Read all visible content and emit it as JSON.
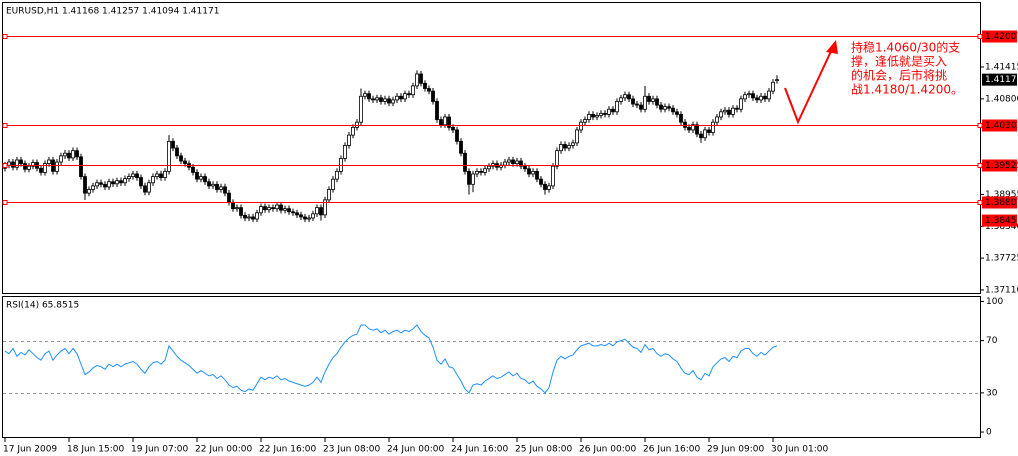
{
  "chart_data": [
    {
      "type": "candlestick",
      "title": "EURUSD,H1  1.41168 1.41257 1.41094 1.41171",
      "categories": [
        "17 Jun 2009",
        null,
        null,
        null,
        null,
        null,
        null,
        null,
        null,
        null,
        null,
        null,
        null,
        null,
        null,
        null,
        "18 Jun 15:00",
        null,
        null,
        null,
        null,
        null,
        null,
        null,
        null,
        null,
        null,
        null,
        null,
        null,
        null,
        null,
        "19 Jun 07:00",
        null,
        null,
        null,
        null,
        null,
        null,
        null,
        null,
        null,
        null,
        null,
        null,
        null,
        null,
        null,
        "22 Jun 00:00",
        null,
        null,
        null,
        null,
        null,
        null,
        null,
        null,
        null,
        null,
        null,
        null,
        null,
        null,
        null,
        "22 Jun 16:00",
        null,
        null,
        null,
        null,
        null,
        null,
        null,
        null,
        null,
        null,
        null,
        null,
        null,
        null,
        null,
        "23 Jun 08:00",
        null,
        null,
        null,
        null,
        null,
        null,
        null,
        null,
        null,
        null,
        null,
        null,
        null,
        null,
        null,
        "24 Jun 00:00",
        null,
        null,
        null,
        null,
        null,
        null,
        null,
        null,
        null,
        null,
        null,
        null,
        null,
        null,
        null,
        "24 Jun 16:00",
        null,
        null,
        null,
        null,
        null,
        null,
        null,
        null,
        null,
        null,
        null,
        null,
        null,
        null,
        null,
        "25 Jun 08:00",
        null,
        null,
        null,
        null,
        null,
        null,
        null,
        null,
        null,
        null,
        null,
        null,
        null,
        null,
        null,
        "26 Jun 00:00",
        null,
        null,
        null,
        null,
        null,
        null,
        null,
        null,
        null,
        null,
        null,
        null,
        null,
        null,
        null,
        "26 Jun 16:00",
        null,
        null,
        null,
        null,
        null,
        null,
        null,
        null,
        null,
        null,
        null,
        null,
        null,
        null,
        null,
        "29 Jun 09:00",
        null,
        null,
        null,
        null,
        null,
        null,
        null,
        null,
        null,
        null,
        null,
        null,
        null,
        null,
        null,
        "30 Jun 01:00",
        null
      ],
      "open": [
        1.3946,
        1.3952,
        1.3958,
        1.3948,
        1.3962,
        1.3955,
        1.3944,
        1.395,
        1.3957,
        1.3946,
        1.3938,
        1.3955,
        1.3962,
        1.394,
        1.3958,
        1.397,
        1.3975,
        1.3966,
        1.398,
        1.3968,
        1.393,
        1.3898,
        1.3905,
        1.3912,
        1.3918,
        1.3915,
        1.391,
        1.392,
        1.3916,
        1.3922,
        1.3918,
        1.3926,
        1.393,
        1.3935,
        1.3928,
        1.3912,
        1.39,
        1.3918,
        1.393,
        1.3935,
        1.3928,
        1.394,
        1.3998,
        1.3985,
        1.397,
        1.396,
        1.3955,
        1.3948,
        1.3938,
        1.3925,
        1.393,
        1.392,
        1.3912,
        1.3915,
        1.3905,
        1.391,
        1.3898,
        1.388,
        1.3868,
        1.387,
        1.3855,
        1.385,
        1.3852,
        1.3848,
        1.386,
        1.3872,
        1.3866,
        1.387,
        1.3868,
        1.3875,
        1.3865,
        1.3868,
        1.3862,
        1.386,
        1.3856,
        1.3852,
        1.3848,
        1.385,
        1.3858,
        1.387,
        1.3856,
        1.3885,
        1.3905,
        1.3925,
        1.394,
        1.3965,
        1.399,
        1.401,
        1.4025,
        1.4035,
        1.4085,
        1.409,
        1.408,
        1.4078,
        1.4082,
        1.4075,
        1.408,
        1.4072,
        1.4078,
        1.4085,
        1.408,
        1.409,
        1.4088,
        1.4105,
        1.4128,
        1.411,
        1.41,
        1.4095,
        1.4075,
        1.404,
        1.403,
        1.4045,
        1.4025,
        1.402,
        1.3998,
        1.3975,
        1.394,
        1.3915,
        1.3935,
        1.394,
        1.3938,
        1.3945,
        1.395,
        1.3955,
        1.3948,
        1.3952,
        1.3958,
        1.3962,
        1.3955,
        1.396,
        1.395,
        1.3945,
        1.3935,
        1.394,
        1.3925,
        1.3915,
        1.3905,
        1.3912,
        1.395,
        1.398,
        1.3992,
        1.3985,
        1.399,
        1.3995,
        1.402,
        1.4035,
        1.404,
        1.405,
        1.4045,
        1.4048,
        1.4052,
        1.405,
        1.406,
        1.4055,
        1.4075,
        1.4082,
        1.4088,
        1.408,
        1.407,
        1.4068,
        1.406,
        1.4085,
        1.4075,
        1.408,
        1.4068,
        1.406,
        1.4065,
        1.4062,
        1.4055,
        1.405,
        1.4035,
        1.4025,
        1.402,
        1.403,
        1.4012,
        1.4005,
        1.402,
        1.4015,
        1.4035,
        1.4045,
        1.4055,
        1.4058,
        1.405,
        1.4062,
        1.406,
        1.408,
        1.4088,
        1.409,
        1.4082,
        1.4078,
        1.4085,
        1.408,
        1.4095,
        1.41168
      ],
      "high": [
        1.3958,
        1.3964,
        1.3964,
        1.3968,
        1.3968,
        1.3961,
        1.3956,
        1.3963,
        1.3963,
        1.3952,
        1.3961,
        1.3968,
        1.3968,
        1.3964,
        1.3976,
        1.3981,
        1.3981,
        1.3986,
        1.3986,
        1.3974,
        1.3936,
        1.3911,
        1.3918,
        1.3924,
        1.3924,
        1.3921,
        1.3926,
        1.3926,
        1.3928,
        1.3928,
        1.3932,
        1.3936,
        1.3941,
        1.3941,
        1.3934,
        1.3918,
        1.3924,
        1.3936,
        1.3941,
        1.3941,
        1.3946,
        1.401,
        1.4004,
        1.3991,
        1.3976,
        1.3966,
        1.3961,
        1.3954,
        1.3944,
        1.3936,
        1.3936,
        1.3926,
        1.3921,
        1.3921,
        1.3916,
        1.3916,
        1.3904,
        1.3886,
        1.3876,
        1.3876,
        1.3861,
        1.3858,
        1.3858,
        1.3866,
        1.3878,
        1.3878,
        1.3876,
        1.3876,
        1.3881,
        1.3881,
        1.3874,
        1.3874,
        1.3868,
        1.3866,
        1.3862,
        1.3858,
        1.3856,
        1.3864,
        1.3876,
        1.3876,
        1.3891,
        1.3911,
        1.3931,
        1.3946,
        1.3971,
        1.3996,
        1.4016,
        1.4031,
        1.4041,
        1.41,
        1.4096,
        1.4096,
        1.4086,
        1.4088,
        1.4088,
        1.4086,
        1.4086,
        1.4084,
        1.4091,
        1.4091,
        1.4096,
        1.4096,
        1.4111,
        1.4135,
        1.4134,
        1.4116,
        1.4106,
        1.4101,
        1.4081,
        1.4046,
        1.4051,
        1.4051,
        1.4031,
        1.4026,
        1.4004,
        1.3981,
        1.3946,
        1.3941,
        1.3946,
        1.3946,
        1.3951,
        1.3956,
        1.3961,
        1.3961,
        1.3958,
        1.3964,
        1.3968,
        1.3968,
        1.3966,
        1.3966,
        1.3956,
        1.3951,
        1.3946,
        1.3946,
        1.3931,
        1.3921,
        1.3918,
        1.3956,
        1.3986,
        1.3998,
        1.3998,
        1.3996,
        1.4001,
        1.4026,
        1.4041,
        1.4046,
        1.4056,
        1.4056,
        1.4054,
        1.4058,
        1.4058,
        1.4066,
        1.4066,
        1.4081,
        1.4088,
        1.4094,
        1.4094,
        1.4086,
        1.4076,
        1.4074,
        1.4105,
        1.4091,
        1.4086,
        1.4086,
        1.4074,
        1.4071,
        1.4071,
        1.4068,
        1.4061,
        1.4056,
        1.4041,
        1.4031,
        1.4036,
        1.4036,
        1.4018,
        1.4026,
        1.4026,
        1.4041,
        1.4051,
        1.4061,
        1.4064,
        1.4064,
        1.4068,
        1.4068,
        1.4086,
        1.4094,
        1.4096,
        1.4096,
        1.4088,
        1.4091,
        1.4091,
        1.4101,
        1.4118,
        1.41257
      ],
      "low": [
        1.394,
        1.3946,
        1.3942,
        1.3942,
        1.3949,
        1.3938,
        1.3938,
        1.3944,
        1.394,
        1.3932,
        1.3932,
        1.3949,
        1.3934,
        1.3934,
        1.3952,
        1.3964,
        1.396,
        1.396,
        1.3962,
        1.3924,
        1.3885,
        1.3892,
        1.3899,
        1.3906,
        1.3909,
        1.3904,
        1.3904,
        1.391,
        1.391,
        1.3912,
        1.3912,
        1.392,
        1.3924,
        1.3922,
        1.3906,
        1.3894,
        1.3894,
        1.3912,
        1.3924,
        1.3922,
        1.3922,
        1.3934,
        1.3979,
        1.3964,
        1.3954,
        1.3949,
        1.3942,
        1.3932,
        1.3919,
        1.3919,
        1.3914,
        1.3906,
        1.3906,
        1.3899,
        1.3899,
        1.3892,
        1.3874,
        1.3862,
        1.3862,
        1.3849,
        1.3844,
        1.3844,
        1.3842,
        1.3842,
        1.3854,
        1.386,
        1.386,
        1.3862,
        1.3862,
        1.3859,
        1.3859,
        1.3856,
        1.3854,
        1.385,
        1.3846,
        1.3842,
        1.3842,
        1.3844,
        1.3852,
        1.3845,
        1.385,
        1.3879,
        1.3899,
        1.3919,
        1.3934,
        1.3959,
        1.3984,
        1.4004,
        1.4019,
        1.4029,
        1.4079,
        1.4074,
        1.4072,
        1.4072,
        1.4069,
        1.4069,
        1.4066,
        1.4066,
        1.4072,
        1.4074,
        1.4074,
        1.4082,
        1.4082,
        1.4099,
        1.4104,
        1.4094,
        1.4089,
        1.4069,
        1.4034,
        1.4024,
        1.4024,
        1.4019,
        1.4014,
        1.3992,
        1.3969,
        1.3934,
        1.3895,
        1.39,
        1.3929,
        1.3932,
        1.3932,
        1.3939,
        1.3944,
        1.3942,
        1.3942,
        1.3946,
        1.3952,
        1.3949,
        1.3949,
        1.3944,
        1.3939,
        1.3929,
        1.3929,
        1.3919,
        1.3909,
        1.3895,
        1.3899,
        1.3906,
        1.3944,
        1.3974,
        1.3979,
        1.3979,
        1.3984,
        1.3989,
        1.4014,
        1.4029,
        1.4034,
        1.4039,
        1.4039,
        1.4042,
        1.4044,
        1.4044,
        1.4049,
        1.4049,
        1.4069,
        1.4076,
        1.4074,
        1.4064,
        1.4062,
        1.4054,
        1.4054,
        1.4069,
        1.4069,
        1.4062,
        1.4054,
        1.4054,
        1.4056,
        1.4049,
        1.4044,
        1.4029,
        1.4019,
        1.4014,
        1.4014,
        1.4006,
        1.3995,
        1.3999,
        1.4009,
        1.4009,
        1.4029,
        1.4039,
        1.4049,
        1.4044,
        1.4044,
        1.4054,
        1.4054,
        1.4074,
        1.4082,
        1.4076,
        1.4072,
        1.4072,
        1.4074,
        1.4074,
        1.4089,
        1.41094
      ],
      "close": [
        1.3952,
        1.3958,
        1.3948,
        1.3962,
        1.3955,
        1.3944,
        1.395,
        1.3957,
        1.3946,
        1.3938,
        1.3955,
        1.3962,
        1.394,
        1.3958,
        1.397,
        1.3975,
        1.3966,
        1.398,
        1.3968,
        1.393,
        1.3898,
        1.3905,
        1.3912,
        1.3918,
        1.3915,
        1.391,
        1.392,
        1.3916,
        1.3922,
        1.3918,
        1.3926,
        1.393,
        1.3935,
        1.3928,
        1.3912,
        1.39,
        1.3918,
        1.393,
        1.3935,
        1.3928,
        1.394,
        1.3998,
        1.3985,
        1.397,
        1.396,
        1.3955,
        1.3948,
        1.3938,
        1.3925,
        1.393,
        1.392,
        1.3912,
        1.3915,
        1.3905,
        1.391,
        1.3898,
        1.388,
        1.3868,
        1.387,
        1.3855,
        1.385,
        1.3852,
        1.3848,
        1.386,
        1.3872,
        1.3866,
        1.387,
        1.3868,
        1.3875,
        1.3865,
        1.3868,
        1.3862,
        1.386,
        1.3856,
        1.3852,
        1.3848,
        1.385,
        1.3858,
        1.387,
        1.3856,
        1.3885,
        1.3905,
        1.3925,
        1.394,
        1.3965,
        1.399,
        1.401,
        1.4025,
        1.4035,
        1.4085,
        1.409,
        1.408,
        1.4078,
        1.4082,
        1.4075,
        1.408,
        1.4072,
        1.4078,
        1.4085,
        1.408,
        1.409,
        1.4088,
        1.4105,
        1.4128,
        1.411,
        1.41,
        1.4095,
        1.4075,
        1.404,
        1.403,
        1.4045,
        1.4025,
        1.402,
        1.3998,
        1.3975,
        1.394,
        1.3915,
        1.3935,
        1.394,
        1.3938,
        1.3945,
        1.395,
        1.3955,
        1.3948,
        1.3952,
        1.3958,
        1.3962,
        1.3955,
        1.396,
        1.395,
        1.3945,
        1.3935,
        1.394,
        1.3925,
        1.3915,
        1.3905,
        1.3912,
        1.395,
        1.398,
        1.3992,
        1.3985,
        1.399,
        1.3995,
        1.402,
        1.4035,
        1.404,
        1.405,
        1.4045,
        1.4048,
        1.4052,
        1.405,
        1.406,
        1.4055,
        1.4075,
        1.4082,
        1.4088,
        1.408,
        1.407,
        1.4068,
        1.406,
        1.4085,
        1.4075,
        1.408,
        1.4068,
        1.406,
        1.4065,
        1.4062,
        1.4055,
        1.405,
        1.4035,
        1.4025,
        1.402,
        1.403,
        1.4012,
        1.4005,
        1.402,
        1.4015,
        1.4035,
        1.4045,
        1.4055,
        1.4058,
        1.405,
        1.4062,
        1.406,
        1.408,
        1.4088,
        1.409,
        1.4082,
        1.4078,
        1.4085,
        1.408,
        1.4095,
        1.4112,
        1.41171
      ],
      "color": "#000000",
      "ylim": [
        1.37071,
        1.42651
      ],
      "yticks": [
        1.41415,
        {
          "value": 1.408,
          "label": "1.40800"
        },
        1.38955,
        {
          "value": 1.3834,
          "label": "1.38340"
        },
        1.37725,
        {
          "value": 1.3711,
          "label": "1.37110"
        }
      ],
      "level_lines": [
        1.42007,
        1.40301,
        1.39525,
        1.38807
      ],
      "level_color": "#ff0000",
      "price_marks": [
        1.3845
      ],
      "annotation_lines": [
        "持稳1.4060/30的支",
        "撑，逢低就是买入",
        "的机会，后市将挑",
        "战1.4180/1.4200。"
      ]
    },
    {
      "type": "line",
      "title": "RSI(14) 65.8515",
      "values": [
        62,
        60,
        64,
        58,
        61,
        59,
        63,
        60,
        57,
        55,
        60,
        62,
        55,
        59,
        62,
        64,
        60,
        64,
        60,
        52,
        44,
        46,
        49,
        51,
        50,
        48,
        52,
        50,
        52,
        50,
        52,
        53,
        54,
        52,
        48,
        45,
        50,
        53,
        54,
        52,
        55,
        66,
        62,
        58,
        55,
        53,
        51,
        48,
        45,
        47,
        45,
        43,
        44,
        41,
        43,
        40,
        36,
        34,
        35,
        32,
        31,
        33,
        32,
        37,
        42,
        40,
        42,
        41,
        43,
        40,
        41,
        39,
        38,
        37,
        36,
        35,
        36,
        38,
        42,
        38,
        46,
        52,
        57,
        60,
        65,
        69,
        72,
        74,
        75,
        82,
        82,
        79,
        78,
        79,
        76,
        78,
        75,
        77,
        78,
        76,
        78,
        77,
        79,
        82,
        77,
        74,
        72,
        65,
        55,
        52,
        56,
        50,
        49,
        44,
        39,
        33,
        30,
        36,
        37,
        36,
        39,
        41,
        43,
        41,
        42,
        44,
        46,
        43,
        45,
        41,
        40,
        37,
        39,
        35,
        33,
        30,
        34,
        46,
        55,
        58,
        56,
        58,
        59,
        63,
        66,
        67,
        68,
        66,
        66,
        67,
        66,
        68,
        66,
        69,
        70,
        71,
        68,
        65,
        64,
        61,
        67,
        63,
        64,
        60,
        58,
        60,
        59,
        56,
        54,
        49,
        45,
        44,
        47,
        42,
        40,
        45,
        43,
        50,
        53,
        56,
        57,
        54,
        58,
        57,
        62,
        64,
        64,
        60,
        58,
        61,
        59,
        62,
        65,
        65.85
      ],
      "color": "#1e90ff",
      "ylim": [
        -3.8,
        103.4
      ],
      "yticks": [
        0,
        30,
        70,
        100
      ],
      "dashed_levels": [
        30,
        70
      ]
    }
  ]
}
